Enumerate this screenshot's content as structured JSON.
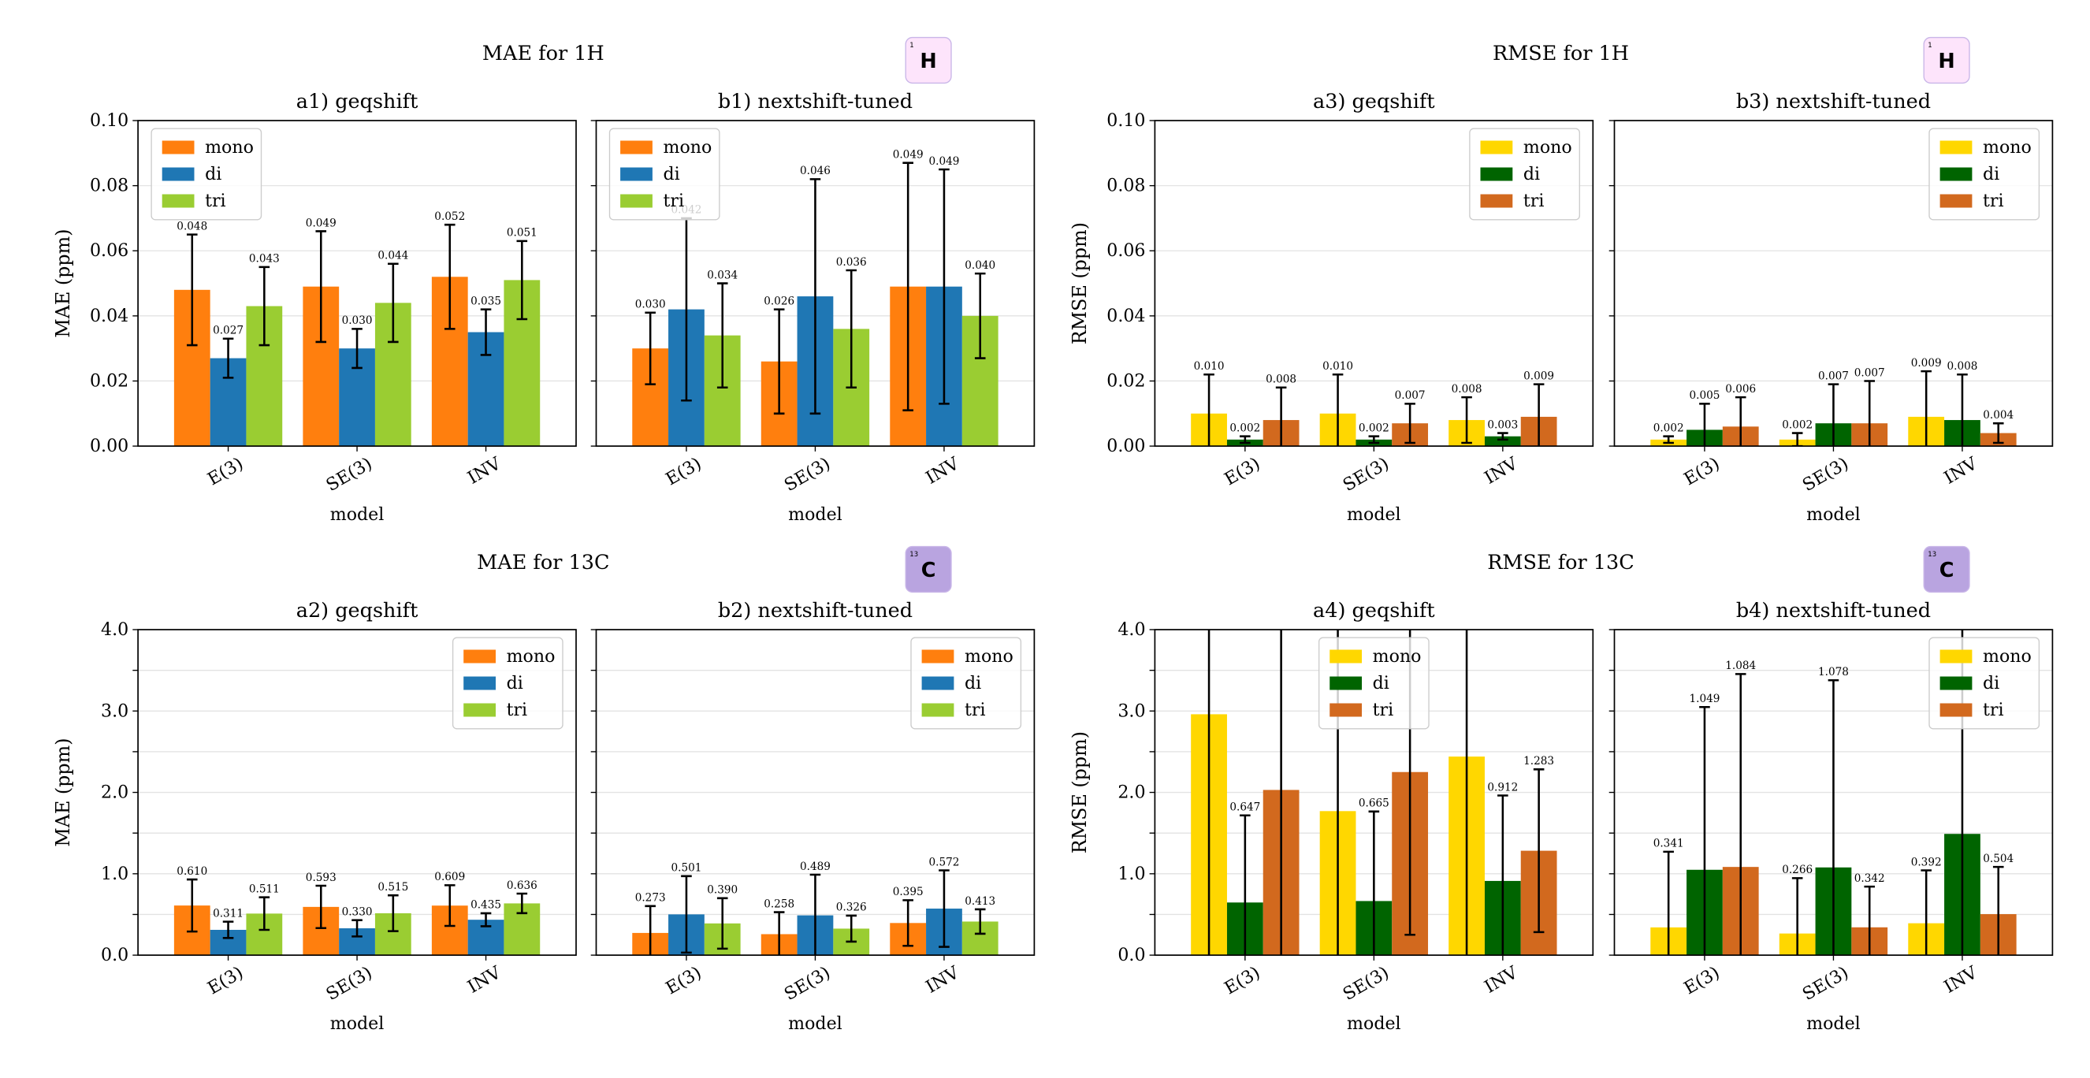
{
  "groups": [
    {
      "title": "MAE for 1H",
      "badge": "H",
      "badge_mass": "1",
      "badge_color": "#fde4fb"
    },
    {
      "title": "RMSE for 1H",
      "badge": "H",
      "badge_mass": "1",
      "badge_color": "#fde4fb"
    },
    {
      "title": "MAE for 13C",
      "badge": "C",
      "badge_mass": "13",
      "badge_color": "#b9a4e0"
    },
    {
      "title": "RMSE for 13C",
      "badge": "C",
      "badge_mass": "13",
      "badge_color": "#b9a4e0"
    }
  ],
  "chart_data": [
    {
      "type": "bar",
      "title": "a1) geqshift",
      "xlabel": "model",
      "ylabel": "MAE (ppm)",
      "categories": [
        "E(3)",
        "SE(3)",
        "INV"
      ],
      "ylim": [
        0,
        0.1
      ],
      "yticks": [
        {
          "value": 0,
          "label": "0.00"
        },
        {
          "value": 0.02,
          "label": "0.02"
        },
        {
          "value": 0.04,
          "label": "0.04"
        },
        {
          "value": 0.06,
          "label": "0.06"
        },
        {
          "value": 0.08,
          "label": "0.08"
        },
        {
          "value": 0.1,
          "label": "0.10"
        }
      ],
      "grid": true,
      "legend": "upper left",
      "series": [
        {
          "name": "mono",
          "color": "#ff7f0e",
          "values": [
            0.048,
            0.049,
            0.052
          ],
          "errors": [
            0.017,
            0.017,
            0.016
          ],
          "value_labels": [
            "0.048",
            "0.049",
            "0.052"
          ]
        },
        {
          "name": "di",
          "color": "#1f77b4",
          "values": [
            0.027,
            0.03,
            0.035
          ],
          "errors": [
            0.006,
            0.006,
            0.007
          ],
          "value_labels": [
            "0.027",
            "0.030",
            "0.035"
          ]
        },
        {
          "name": "tri",
          "color": "#9acd32",
          "values": [
            0.043,
            0.044,
            0.051
          ],
          "errors": [
            0.012,
            0.012,
            0.012
          ],
          "value_labels": [
            "0.043",
            "0.044",
            "0.051"
          ]
        }
      ]
    },
    {
      "type": "bar",
      "title": "b1) nextshift-tuned",
      "xlabel": "model",
      "categories": [
        "E(3)",
        "SE(3)",
        "INV"
      ],
      "ylim": [
        0,
        0.1
      ],
      "yticks": [
        0,
        0.02,
        0.04,
        0.06,
        0.08,
        0.1
      ],
      "grid": true,
      "legend": "upper left",
      "series": [
        {
          "name": "mono",
          "color": "#ff7f0e",
          "values": [
            0.03,
            0.026,
            0.049
          ],
          "errors": [
            0.011,
            0.016,
            0.038
          ],
          "value_labels": [
            "0.030",
            "0.026",
            "0.049"
          ]
        },
        {
          "name": "di",
          "color": "#1f77b4",
          "values": [
            0.042,
            0.046,
            0.049
          ],
          "errors": [
            0.028,
            0.036,
            0.036
          ],
          "value_labels": [
            "0.042",
            "0.046",
            "0.049"
          ]
        },
        {
          "name": "tri",
          "color": "#9acd32",
          "values": [
            0.034,
            0.036,
            0.04
          ],
          "errors": [
            0.016,
            0.018,
            0.013
          ],
          "value_labels": [
            "0.034",
            "0.036",
            "0.040"
          ]
        }
      ]
    },
    {
      "type": "bar",
      "title": "a3) geqshift",
      "xlabel": "model",
      "ylabel": "RMSE (ppm)",
      "categories": [
        "E(3)",
        "SE(3)",
        "INV"
      ],
      "ylim": [
        0,
        0.1
      ],
      "yticks": [
        {
          "value": 0,
          "label": "0.00"
        },
        {
          "value": 0.02,
          "label": "0.02"
        },
        {
          "value": 0.04,
          "label": "0.04"
        },
        {
          "value": 0.06,
          "label": "0.06"
        },
        {
          "value": 0.08,
          "label": "0.08"
        },
        {
          "value": 0.1,
          "label": "0.10"
        }
      ],
      "grid": true,
      "legend": "upper right",
      "series": [
        {
          "name": "mono",
          "color": "#ffd700",
          "values": [
            0.01,
            0.01,
            0.008
          ],
          "errors": [
            0.012,
            0.012,
            0.007
          ],
          "value_labels": [
            "0.010",
            "0.010",
            "0.008"
          ]
        },
        {
          "name": "di",
          "color": "#006400",
          "values": [
            0.002,
            0.002,
            0.003
          ],
          "errors": [
            0.001,
            0.001,
            0.001
          ],
          "value_labels": [
            "0.002",
            "0.002",
            "0.003"
          ]
        },
        {
          "name": "tri",
          "color": "#d2691e",
          "values": [
            0.008,
            0.007,
            0.009
          ],
          "errors": [
            0.01,
            0.006,
            0.01
          ],
          "value_labels": [
            "0.008",
            "0.007",
            "0.009"
          ]
        }
      ]
    },
    {
      "type": "bar",
      "title": "b3) nextshift-tuned",
      "xlabel": "model",
      "categories": [
        "E(3)",
        "SE(3)",
        "INV"
      ],
      "ylim": [
        0,
        0.1
      ],
      "yticks": [
        0,
        0.02,
        0.04,
        0.06,
        0.08,
        0.1
      ],
      "grid": true,
      "legend": "upper right",
      "series": [
        {
          "name": "mono",
          "color": "#ffd700",
          "values": [
            0.002,
            0.002,
            0.009
          ],
          "errors": [
            0.001,
            0.002,
            0.014
          ],
          "value_labels": [
            "0.002",
            "0.002",
            "0.009"
          ]
        },
        {
          "name": "di",
          "color": "#006400",
          "values": [
            0.005,
            0.007,
            0.008
          ],
          "errors": [
            0.008,
            0.012,
            0.014
          ],
          "value_labels": [
            "0.005",
            "0.007",
            "0.008"
          ]
        },
        {
          "name": "tri",
          "color": "#d2691e",
          "values": [
            0.006,
            0.007,
            0.004
          ],
          "errors": [
            0.009,
            0.013,
            0.003
          ],
          "value_labels": [
            "0.006",
            "0.007",
            "0.004"
          ]
        }
      ]
    },
    {
      "type": "bar",
      "title": "a2) geqshift",
      "xlabel": "model",
      "ylabel": "MAE (ppm)",
      "categories": [
        "E(3)",
        "SE(3)",
        "INV"
      ],
      "ylim": [
        0,
        4
      ],
      "yticks": [
        {
          "value": 0,
          "label": "0.0"
        },
        0.5,
        {
          "value": 1,
          "label": "1.0"
        },
        1.5,
        {
          "value": 2,
          "label": "2.0"
        },
        2.5,
        {
          "value": 3,
          "label": "3.0"
        },
        3.5,
        {
          "value": 4,
          "label": "4.0"
        }
      ],
      "grid": true,
      "legend": "upper right",
      "series": [
        {
          "name": "mono",
          "color": "#ff7f0e",
          "values": [
            0.61,
            0.593,
            0.609
          ],
          "errors": [
            0.32,
            0.26,
            0.25
          ],
          "value_labels": [
            "0.610",
            "0.593",
            "0.609"
          ]
        },
        {
          "name": "di",
          "color": "#1f77b4",
          "values": [
            0.311,
            0.33,
            0.435
          ],
          "errors": [
            0.1,
            0.1,
            0.08
          ],
          "value_labels": [
            "0.311",
            "0.330",
            "0.435"
          ]
        },
        {
          "name": "tri",
          "color": "#9acd32",
          "values": [
            0.511,
            0.515,
            0.636
          ],
          "errors": [
            0.2,
            0.22,
            0.12
          ],
          "value_labels": [
            "0.511",
            "0.515",
            "0.636"
          ]
        }
      ]
    },
    {
      "type": "bar",
      "title": "b2) nextshift-tuned",
      "xlabel": "model",
      "categories": [
        "E(3)",
        "SE(3)",
        "INV"
      ],
      "ylim": [
        0,
        4
      ],
      "yticks": [
        0,
        0.5,
        1,
        1.5,
        2,
        2.5,
        3,
        3.5,
        4
      ],
      "grid": true,
      "legend": "upper right",
      "series": [
        {
          "name": "mono",
          "color": "#ff7f0e",
          "values": [
            0.273,
            0.258,
            0.395
          ],
          "errors": [
            0.33,
            0.27,
            0.28
          ],
          "value_labels": [
            "0.273",
            "0.258",
            "0.395"
          ]
        },
        {
          "name": "di",
          "color": "#1f77b4",
          "values": [
            0.501,
            0.489,
            0.572
          ],
          "errors": [
            0.47,
            0.5,
            0.47
          ],
          "value_labels": [
            "0.501",
            "0.489",
            "0.572"
          ]
        },
        {
          "name": "tri",
          "color": "#9acd32",
          "values": [
            0.39,
            0.326,
            0.413
          ],
          "errors": [
            0.31,
            0.16,
            0.15
          ],
          "value_labels": [
            "0.390",
            "0.326",
            "0.413"
          ]
        }
      ]
    },
    {
      "type": "bar",
      "title": "a4) geqshift",
      "xlabel": "model",
      "ylabel": "RMSE (ppm)",
      "categories": [
        "E(3)",
        "SE(3)",
        "INV"
      ],
      "ylim": [
        0,
        4
      ],
      "yticks": [
        {
          "value": 0,
          "label": "0.0"
        },
        0.5,
        {
          "value": 1,
          "label": "1.0"
        },
        1.5,
        {
          "value": 2,
          "label": "2.0"
        },
        2.5,
        {
          "value": 3,
          "label": "3.0"
        },
        3.5,
        {
          "value": 4,
          "label": "4.0"
        }
      ],
      "grid": true,
      "legend": "upper center",
      "series": [
        {
          "name": "mono",
          "color": "#ffd700",
          "values": [
            2.96,
            1.77,
            2.44
          ],
          "errors": [
            3.5,
            3.0,
            3.0
          ],
          "value_labels": [
            null,
            null,
            null
          ]
        },
        {
          "name": "di",
          "color": "#006400",
          "values": [
            0.647,
            0.665,
            0.912
          ],
          "errors": [
            1.07,
            1.1,
            1.05
          ],
          "value_labels": [
            "0.647",
            "0.665",
            "0.912"
          ]
        },
        {
          "name": "tri",
          "color": "#d2691e",
          "values": [
            2.03,
            2.25,
            1.283
          ],
          "errors": [
            2.5,
            2.0,
            1.0
          ],
          "value_labels": [
            null,
            null,
            "1.283"
          ]
        }
      ]
    },
    {
      "type": "bar",
      "title": "b4) nextshift-tuned",
      "xlabel": "model",
      "categories": [
        "E(3)",
        "SE(3)",
        "INV"
      ],
      "ylim": [
        0,
        4
      ],
      "yticks": [
        0,
        0.5,
        1,
        1.5,
        2,
        2.5,
        3,
        3.5,
        4
      ],
      "grid": true,
      "legend": "upper right",
      "series": [
        {
          "name": "mono",
          "color": "#ffd700",
          "values": [
            0.341,
            0.266,
            0.392
          ],
          "errors": [
            0.93,
            0.68,
            0.65
          ],
          "value_labels": [
            "0.341",
            "0.266",
            "0.392"
          ]
        },
        {
          "name": "di",
          "color": "#006400",
          "values": [
            1.049,
            1.078,
            1.49
          ],
          "errors": [
            2.0,
            2.3,
            3.0
          ],
          "value_labels": [
            "1.049",
            "1.078",
            null
          ]
        },
        {
          "name": "tri",
          "color": "#d2691e",
          "values": [
            1.084,
            0.342,
            0.504
          ],
          "errors": [
            2.37,
            0.5,
            0.58
          ],
          "value_labels": [
            "1.084",
            "0.342",
            "0.504"
          ]
        }
      ]
    }
  ]
}
